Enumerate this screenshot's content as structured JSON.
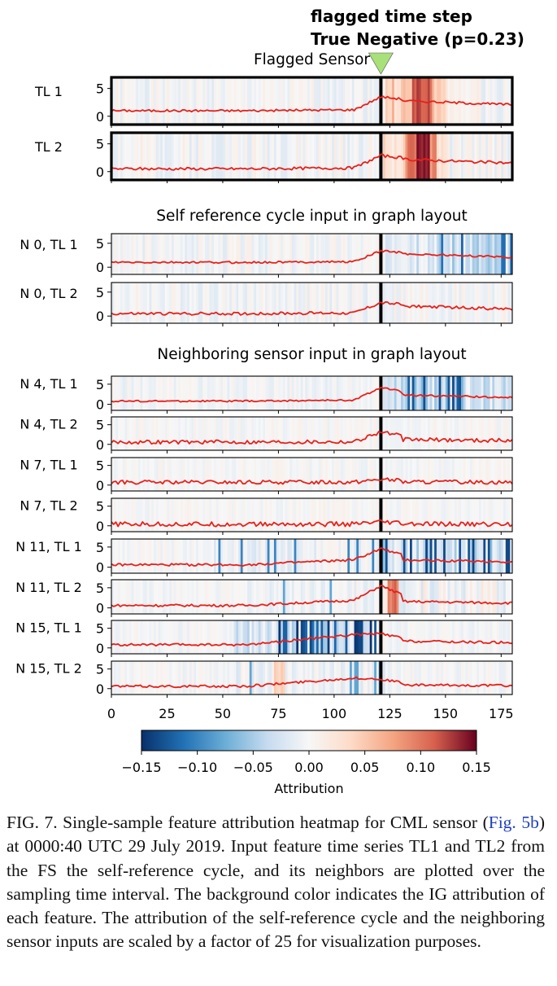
{
  "chart_data": {
    "type": "heatmap",
    "annotation": {
      "line1": "flagged time step",
      "line2": "True Negative (p=0.23)",
      "flagged_step": 121,
      "marker_color": "#a8e07a"
    },
    "x_range": [
      0,
      180
    ],
    "x_ticks": [
      "0",
      "25",
      "50",
      "75",
      "100",
      "125",
      "150",
      "175"
    ],
    "x_tick_values": [
      0,
      25,
      50,
      75,
      100,
      125,
      150,
      175
    ],
    "y_ticks": [
      "0",
      "5"
    ],
    "y_tick_values": [
      0,
      5
    ],
    "y_range": [
      -1.5,
      7
    ],
    "line_color": "#e8201a",
    "groups": [
      {
        "title": "Flagged Sensor",
        "panels": [
          {
            "label": "TL 1",
            "heat": "fs1",
            "line": {
              "base": 1.0,
              "noise": 0.2,
              "ramp": 0.2,
              "peak": 3.5,
              "after": 2.8,
              "seed": 1
            }
          },
          {
            "label": "TL 2",
            "heat": "fs2",
            "line": {
              "base": 0.5,
              "noise": 0.25,
              "ramp": 0.2,
              "peak": 2.9,
              "after": 2.2,
              "seed": 2
            }
          }
        ]
      },
      {
        "title": "Self reference cycle input in graph layout",
        "panels": [
          {
            "label": "N 0, TL 1",
            "heat": "self",
            "line": {
              "base": 1.0,
              "noise": 0.2,
              "ramp": 0.2,
              "peak": 3.4,
              "after": 2.8,
              "seed": 3
            }
          },
          {
            "label": "N 0, TL 2",
            "heat": "self2",
            "line": {
              "base": 0.5,
              "noise": 0.3,
              "ramp": 0.2,
              "peak": 2.8,
              "after": 2.1,
              "seed": 4
            }
          }
        ]
      },
      {
        "title": "Neighboring sensor input in graph layout",
        "panels": [
          {
            "label": "N 4, TL 1",
            "heat": "n4a",
            "line": {
              "base": 0.8,
              "noise": 0.2,
              "ramp": 0.3,
              "peak": 4.2,
              "after": 2.3,
              "seed": 5
            }
          },
          {
            "label": "N 4, TL 2",
            "heat": "light",
            "line": {
              "base": 0.6,
              "noise": 0.5,
              "ramp": 0.1,
              "peak": 3.2,
              "after": 1.2,
              "seed": 6
            }
          },
          {
            "label": "N 7, TL 1",
            "heat": "light",
            "line": {
              "base": 0.7,
              "noise": 0.5,
              "ramp": 0.1,
              "peak": 1.5,
              "after": 0.8,
              "seed": 7
            }
          },
          {
            "label": "N 7, TL 2",
            "heat": "light",
            "line": {
              "base": 0.4,
              "noise": 0.6,
              "ramp": 0.0,
              "peak": 0.9,
              "after": 0.4,
              "seed": 8
            }
          },
          {
            "label": "N 11, TL 1",
            "heat": "n11a",
            "line": {
              "base": 0.6,
              "noise": 0.3,
              "ramp": 1.5,
              "peak": 4.6,
              "after": 1.8,
              "seed": 9
            }
          },
          {
            "label": "N 11, TL 2",
            "heat": "n11b",
            "line": {
              "base": 0.6,
              "noise": 0.3,
              "ramp": 1.6,
              "peak": 5.5,
              "after": 1.6,
              "seed": 10
            }
          },
          {
            "label": "N 15, TL 1",
            "heat": "n15a",
            "line": {
              "base": 0.8,
              "noise": 0.3,
              "ramp": 3.2,
              "peak": 3.6,
              "after": 1.7,
              "seed": 11
            }
          },
          {
            "label": "N 15, TL 2",
            "heat": "n15b",
            "line": {
              "base": 0.6,
              "noise": 0.3,
              "ramp": 2.6,
              "peak": 2.4,
              "after": 0.9,
              "seed": 12
            }
          }
        ]
      }
    ],
    "colorbar": {
      "label": "Attribution",
      "ticks": [
        "−0.15",
        "−0.10",
        "−0.05",
        "0.00",
        "0.05",
        "0.10",
        "0.15"
      ],
      "tick_values": [
        -0.15,
        -0.1,
        -0.05,
        0.0,
        0.05,
        0.1,
        0.15
      ],
      "range": [
        -0.15,
        0.15
      ],
      "colors": [
        "#08306b",
        "#2171b5",
        "#6baed6",
        "#c6dbef",
        "#f7f7f7",
        "#fddbc7",
        "#f4a582",
        "#d6604d",
        "#67001f"
      ]
    }
  },
  "caption": {
    "fig_label": "FIG. 7.",
    "text_a": " Single-sample feature attribution heatmap for CML sensor (",
    "ref": "Fig. 5b",
    "text_b": ") at 0000:40 UTC 29 July 2019. Input feature time series TL1 and TL2 from the FS the self-reference cycle, and its neighbors are plotted over the sampling time interval. The background color indicates the IG attribution of each feature. The attribution of the self-reference cycle and the neighboring sensor inputs are scaled by a factor of 25 for visualization purposes."
  }
}
